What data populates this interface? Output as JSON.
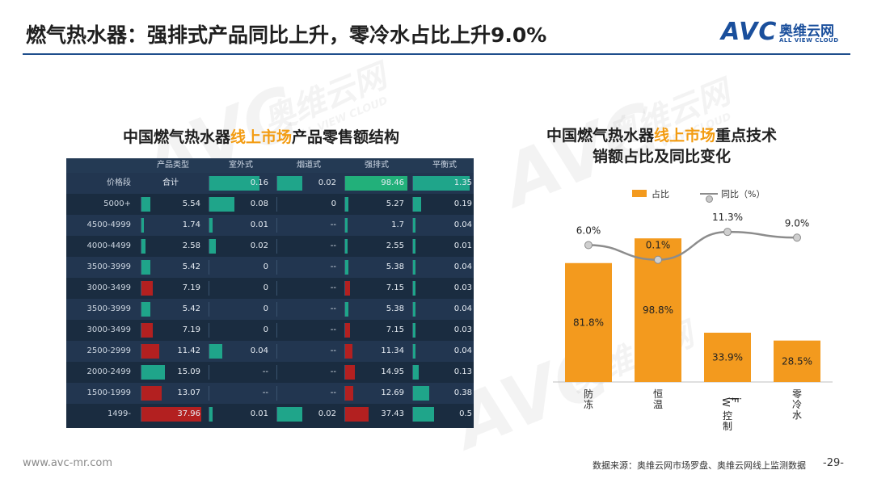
{
  "header": {
    "title": "燃气热水器：强排式产品同比上升，零冷水占比上升9.0%",
    "logo_mark": "AVC",
    "logo_cn": "奥维云网",
    "logo_en": "ALL VIEW CLOUD"
  },
  "left_panel": {
    "title_pre": "中国燃气热水器",
    "title_hl": "线上市场",
    "title_post": "产品零售额结构"
  },
  "right_panel": {
    "title_line1_pre": "中国燃气热水器",
    "title_line1_hl": "线上市场",
    "title_line1_post": "重点技术",
    "title_line2": "销额占比及同比变化"
  },
  "watermark": {
    "cn": "奥维云网",
    "en": "ALL VIEW CLOUD"
  },
  "colors": {
    "accent_orange": "#f39a1e",
    "header_blue": "#1f4e8c",
    "bar_teal": "#1fa58a",
    "bar_red": "#b32020",
    "line_grey": "#8c8c8c"
  },
  "chart_data": [
    {
      "type": "table",
      "columns": [
        "产品类型",
        "室外式",
        "烟道式",
        "强排式",
        "平衡式"
      ],
      "header_row": {
        "label": "价格段",
        "values": [
          "合计",
          "0.16",
          "0.02",
          "98.46",
          "1.35"
        ]
      },
      "rows": [
        {
          "label": "5000+",
          "values": [
            "5.54",
            "0.08",
            "0",
            "5.27",
            "0.19"
          ]
        },
        {
          "label": "4500-4999",
          "values": [
            "1.74",
            "0.01",
            "--",
            "1.7",
            "0.04"
          ]
        },
        {
          "label": "4000-4499",
          "values": [
            "2.58",
            "0.02",
            "--",
            "2.55",
            "0.01"
          ]
        },
        {
          "label": "3500-3999",
          "values": [
            "5.42",
            "0",
            "--",
            "5.38",
            "0.04"
          ]
        },
        {
          "label": "3000-3499",
          "values": [
            "7.19",
            "0",
            "--",
            "7.15",
            "0.03"
          ]
        },
        {
          "label": "3500-3999",
          "values": [
            "5.42",
            "0",
            "--",
            "5.38",
            "0.04"
          ]
        },
        {
          "label": "3000-3499",
          "values": [
            "7.19",
            "0",
            "--",
            "7.15",
            "0.03"
          ]
        },
        {
          "label": "2500-2999",
          "values": [
            "11.42",
            "0.04",
            "--",
            "11.34",
            "0.04"
          ]
        },
        {
          "label": "2000-2499",
          "values": [
            "15.09",
            "--",
            "--",
            "14.95",
            "0.13"
          ]
        },
        {
          "label": "1500-1999",
          "values": [
            "13.07",
            "--",
            "--",
            "12.69",
            "0.38"
          ]
        },
        {
          "label": "1499-",
          "values": [
            "37.96",
            "0.01",
            "0.02",
            "37.43",
            "0.5"
          ]
        }
      ]
    },
    {
      "type": "bar",
      "categories": [
        "防冻",
        "恒温",
        "Wi-Fi控制",
        "零冷水"
      ],
      "series": [
        {
          "name": "占比",
          "kind": "bar",
          "values": [
            81.8,
            98.8,
            33.9,
            28.5
          ],
          "labels": [
            "81.8%",
            "98.8%",
            "33.9%",
            "28.5%"
          ]
        },
        {
          "name": "同比（%）",
          "kind": "line",
          "values": [
            6.0,
            0.1,
            11.3,
            9.0
          ],
          "labels": [
            "6.0%",
            "0.1%",
            "11.3%",
            "9.0%"
          ]
        }
      ],
      "legend": "top"
    }
  ],
  "footer": {
    "url": "www.avc-mr.com",
    "source": "数据来源：奥维云网市场罗盘、奥维云网线上监测数据",
    "page": "-29-"
  }
}
